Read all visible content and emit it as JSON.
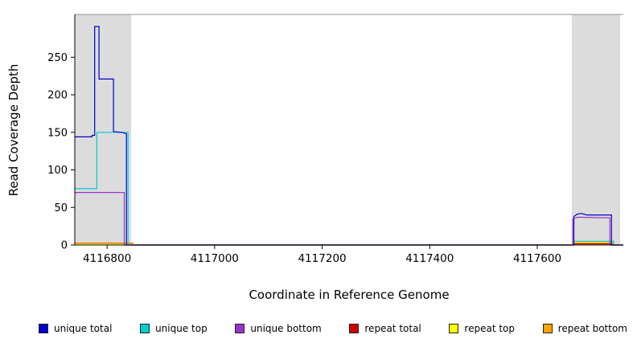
{
  "chart_data": {
    "type": "line",
    "title": "",
    "xlabel": "Coordinate in Reference Genome",
    "ylabel": "Read Coverage Depth",
    "xlim": [
      4116740,
      4117760
    ],
    "ylim": [
      0,
      307
    ],
    "xticks": [
      4116800,
      4117000,
      4117200,
      4117400,
      4117600
    ],
    "yticks": [
      0,
      50,
      100,
      150,
      200,
      250
    ],
    "grid": false,
    "legend_position": "bottom",
    "background_color": "#ffffff",
    "shaded_region_color": "#dcdcdc",
    "top_border_color": "#909090",
    "axis_color": "#000000",
    "shaded_regions": [
      {
        "x0": 4116740,
        "x1": 4116845
      },
      {
        "x0": 4117664,
        "x1": 4117754
      }
    ],
    "series": [
      {
        "name": "repeat total",
        "color": "#CC0000",
        "points": [
          [
            4116740,
            2.5
          ],
          [
            4116848,
            2.5
          ],
          [
            4116848,
            0
          ],
          [
            4117666,
            0
          ],
          [
            4117666,
            1.5
          ],
          [
            4117738,
            1.5
          ],
          [
            4117738,
            0
          ],
          [
            4117760,
            0
          ]
        ]
      },
      {
        "name": "repeat top",
        "color": "#FFFF00",
        "points": [
          [
            4116740,
            1
          ],
          [
            4116848,
            1
          ],
          [
            4116848,
            0
          ],
          [
            4117666,
            0
          ],
          [
            4117666,
            4
          ],
          [
            4117740,
            4
          ],
          [
            4117740,
            0
          ],
          [
            4117760,
            0
          ]
        ]
      },
      {
        "name": "repeat bottom",
        "color": "#FFA500",
        "points": [
          [
            4116740,
            2
          ],
          [
            4116848,
            2
          ],
          [
            4116848,
            0
          ],
          [
            4117666,
            0
          ],
          [
            4117666,
            3
          ],
          [
            4117740,
            3
          ],
          [
            4117740,
            0
          ],
          [
            4117760,
            0
          ]
        ]
      },
      {
        "name": "unique top",
        "color": "#00CED1",
        "points": [
          [
            4116740,
            75
          ],
          [
            4116781,
            75
          ],
          [
            4116781,
            150
          ],
          [
            4116839,
            150
          ],
          [
            4116839,
            0
          ],
          [
            4117668,
            0
          ],
          [
            4117668,
            5
          ],
          [
            4117742,
            5
          ],
          [
            4117742,
            0
          ],
          [
            4117760,
            0
          ]
        ]
      },
      {
        "name": "unique total",
        "color": "#0000CD",
        "points": [
          [
            4116740,
            144
          ],
          [
            4116772,
            144
          ],
          [
            4116772,
            146
          ],
          [
            4116777,
            146
          ],
          [
            4116777,
            291
          ],
          [
            4116785,
            291
          ],
          [
            4116785,
            221
          ],
          [
            4116812,
            221
          ],
          [
            4116812,
            151
          ],
          [
            4116828,
            150
          ],
          [
            4116836,
            148
          ],
          [
            4116836,
            0
          ],
          [
            4117668,
            0
          ],
          [
            4117668,
            38
          ],
          [
            4117674,
            41
          ],
          [
            4117682,
            42
          ],
          [
            4117692,
            40
          ],
          [
            4117738,
            40
          ],
          [
            4117738,
            0
          ],
          [
            4117760,
            0
          ]
        ]
      },
      {
        "name": "unique bottom",
        "color": "#9933CC",
        "points": [
          [
            4116740,
            70
          ],
          [
            4116832,
            70
          ],
          [
            4116832,
            0
          ],
          [
            4117666,
            0
          ],
          [
            4117666,
            35
          ],
          [
            4117676,
            37
          ],
          [
            4117735,
            36
          ],
          [
            4117735,
            0
          ],
          [
            4117760,
            0
          ]
        ]
      }
    ],
    "legend": [
      {
        "label": "unique total",
        "color": "#0000CD"
      },
      {
        "label": "unique top",
        "color": "#00CED1"
      },
      {
        "label": "unique bottom",
        "color": "#9933CC"
      },
      {
        "label": "repeat total",
        "color": "#CC0000"
      },
      {
        "label": "repeat top",
        "color": "#FFFF00"
      },
      {
        "label": "repeat bottom",
        "color": "#FFA500"
      }
    ]
  }
}
